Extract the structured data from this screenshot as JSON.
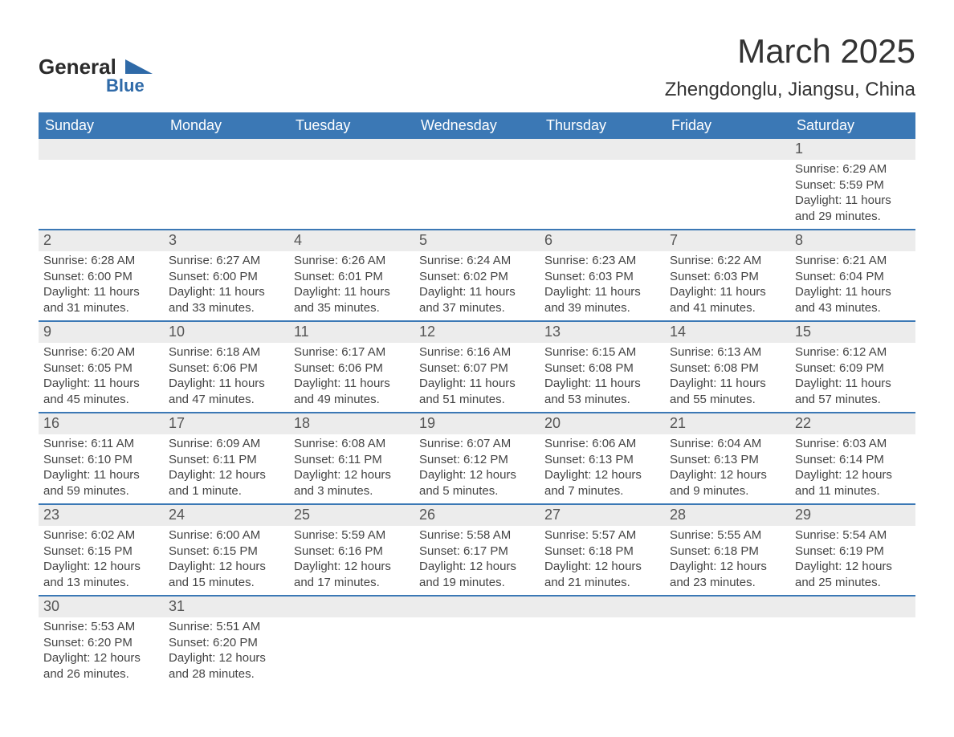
{
  "brand": {
    "text_main": "General",
    "text_sub": "Blue",
    "color_dark": "#2a2a2a",
    "color_blue": "#2f6aa8"
  },
  "title": "March 2025",
  "location": "Zhengdonglu, Jiangsu, China",
  "colors": {
    "header_bg": "#3b78b5",
    "header_text": "#ffffff",
    "daynum_bg": "#ececec",
    "daynum_text": "#555555",
    "body_text": "#444444",
    "rule": "#3b78b5",
    "page_bg": "#ffffff"
  },
  "day_names": [
    "Sunday",
    "Monday",
    "Tuesday",
    "Wednesday",
    "Thursday",
    "Friday",
    "Saturday"
  ],
  "weeks": [
    [
      {
        "empty": true
      },
      {
        "empty": true
      },
      {
        "empty": true
      },
      {
        "empty": true
      },
      {
        "empty": true
      },
      {
        "empty": true
      },
      {
        "day": "1",
        "sunrise": "Sunrise: 6:29 AM",
        "sunset": "Sunset: 5:59 PM",
        "daylight1": "Daylight: 11 hours",
        "daylight2": "and 29 minutes."
      }
    ],
    [
      {
        "day": "2",
        "sunrise": "Sunrise: 6:28 AM",
        "sunset": "Sunset: 6:00 PM",
        "daylight1": "Daylight: 11 hours",
        "daylight2": "and 31 minutes."
      },
      {
        "day": "3",
        "sunrise": "Sunrise: 6:27 AM",
        "sunset": "Sunset: 6:00 PM",
        "daylight1": "Daylight: 11 hours",
        "daylight2": "and 33 minutes."
      },
      {
        "day": "4",
        "sunrise": "Sunrise: 6:26 AM",
        "sunset": "Sunset: 6:01 PM",
        "daylight1": "Daylight: 11 hours",
        "daylight2": "and 35 minutes."
      },
      {
        "day": "5",
        "sunrise": "Sunrise: 6:24 AM",
        "sunset": "Sunset: 6:02 PM",
        "daylight1": "Daylight: 11 hours",
        "daylight2": "and 37 minutes."
      },
      {
        "day": "6",
        "sunrise": "Sunrise: 6:23 AM",
        "sunset": "Sunset: 6:03 PM",
        "daylight1": "Daylight: 11 hours",
        "daylight2": "and 39 minutes."
      },
      {
        "day": "7",
        "sunrise": "Sunrise: 6:22 AM",
        "sunset": "Sunset: 6:03 PM",
        "daylight1": "Daylight: 11 hours",
        "daylight2": "and 41 minutes."
      },
      {
        "day": "8",
        "sunrise": "Sunrise: 6:21 AM",
        "sunset": "Sunset: 6:04 PM",
        "daylight1": "Daylight: 11 hours",
        "daylight2": "and 43 minutes."
      }
    ],
    [
      {
        "day": "9",
        "sunrise": "Sunrise: 6:20 AM",
        "sunset": "Sunset: 6:05 PM",
        "daylight1": "Daylight: 11 hours",
        "daylight2": "and 45 minutes."
      },
      {
        "day": "10",
        "sunrise": "Sunrise: 6:18 AM",
        "sunset": "Sunset: 6:06 PM",
        "daylight1": "Daylight: 11 hours",
        "daylight2": "and 47 minutes."
      },
      {
        "day": "11",
        "sunrise": "Sunrise: 6:17 AM",
        "sunset": "Sunset: 6:06 PM",
        "daylight1": "Daylight: 11 hours",
        "daylight2": "and 49 minutes."
      },
      {
        "day": "12",
        "sunrise": "Sunrise: 6:16 AM",
        "sunset": "Sunset: 6:07 PM",
        "daylight1": "Daylight: 11 hours",
        "daylight2": "and 51 minutes."
      },
      {
        "day": "13",
        "sunrise": "Sunrise: 6:15 AM",
        "sunset": "Sunset: 6:08 PM",
        "daylight1": "Daylight: 11 hours",
        "daylight2": "and 53 minutes."
      },
      {
        "day": "14",
        "sunrise": "Sunrise: 6:13 AM",
        "sunset": "Sunset: 6:08 PM",
        "daylight1": "Daylight: 11 hours",
        "daylight2": "and 55 minutes."
      },
      {
        "day": "15",
        "sunrise": "Sunrise: 6:12 AM",
        "sunset": "Sunset: 6:09 PM",
        "daylight1": "Daylight: 11 hours",
        "daylight2": "and 57 minutes."
      }
    ],
    [
      {
        "day": "16",
        "sunrise": "Sunrise: 6:11 AM",
        "sunset": "Sunset: 6:10 PM",
        "daylight1": "Daylight: 11 hours",
        "daylight2": "and 59 minutes."
      },
      {
        "day": "17",
        "sunrise": "Sunrise: 6:09 AM",
        "sunset": "Sunset: 6:11 PM",
        "daylight1": "Daylight: 12 hours",
        "daylight2": "and 1 minute."
      },
      {
        "day": "18",
        "sunrise": "Sunrise: 6:08 AM",
        "sunset": "Sunset: 6:11 PM",
        "daylight1": "Daylight: 12 hours",
        "daylight2": "and 3 minutes."
      },
      {
        "day": "19",
        "sunrise": "Sunrise: 6:07 AM",
        "sunset": "Sunset: 6:12 PM",
        "daylight1": "Daylight: 12 hours",
        "daylight2": "and 5 minutes."
      },
      {
        "day": "20",
        "sunrise": "Sunrise: 6:06 AM",
        "sunset": "Sunset: 6:13 PM",
        "daylight1": "Daylight: 12 hours",
        "daylight2": "and 7 minutes."
      },
      {
        "day": "21",
        "sunrise": "Sunrise: 6:04 AM",
        "sunset": "Sunset: 6:13 PM",
        "daylight1": "Daylight: 12 hours",
        "daylight2": "and 9 minutes."
      },
      {
        "day": "22",
        "sunrise": "Sunrise: 6:03 AM",
        "sunset": "Sunset: 6:14 PM",
        "daylight1": "Daylight: 12 hours",
        "daylight2": "and 11 minutes."
      }
    ],
    [
      {
        "day": "23",
        "sunrise": "Sunrise: 6:02 AM",
        "sunset": "Sunset: 6:15 PM",
        "daylight1": "Daylight: 12 hours",
        "daylight2": "and 13 minutes."
      },
      {
        "day": "24",
        "sunrise": "Sunrise: 6:00 AM",
        "sunset": "Sunset: 6:15 PM",
        "daylight1": "Daylight: 12 hours",
        "daylight2": "and 15 minutes."
      },
      {
        "day": "25",
        "sunrise": "Sunrise: 5:59 AM",
        "sunset": "Sunset: 6:16 PM",
        "daylight1": "Daylight: 12 hours",
        "daylight2": "and 17 minutes."
      },
      {
        "day": "26",
        "sunrise": "Sunrise: 5:58 AM",
        "sunset": "Sunset: 6:17 PM",
        "daylight1": "Daylight: 12 hours",
        "daylight2": "and 19 minutes."
      },
      {
        "day": "27",
        "sunrise": "Sunrise: 5:57 AM",
        "sunset": "Sunset: 6:18 PM",
        "daylight1": "Daylight: 12 hours",
        "daylight2": "and 21 minutes."
      },
      {
        "day": "28",
        "sunrise": "Sunrise: 5:55 AM",
        "sunset": "Sunset: 6:18 PM",
        "daylight1": "Daylight: 12 hours",
        "daylight2": "and 23 minutes."
      },
      {
        "day": "29",
        "sunrise": "Sunrise: 5:54 AM",
        "sunset": "Sunset: 6:19 PM",
        "daylight1": "Daylight: 12 hours",
        "daylight2": "and 25 minutes."
      }
    ],
    [
      {
        "day": "30",
        "sunrise": "Sunrise: 5:53 AM",
        "sunset": "Sunset: 6:20 PM",
        "daylight1": "Daylight: 12 hours",
        "daylight2": "and 26 minutes."
      },
      {
        "day": "31",
        "sunrise": "Sunrise: 5:51 AM",
        "sunset": "Sunset: 6:20 PM",
        "daylight1": "Daylight: 12 hours",
        "daylight2": "and 28 minutes."
      },
      {
        "empty": true
      },
      {
        "empty": true
      },
      {
        "empty": true
      },
      {
        "empty": true
      },
      {
        "empty": true
      }
    ]
  ]
}
